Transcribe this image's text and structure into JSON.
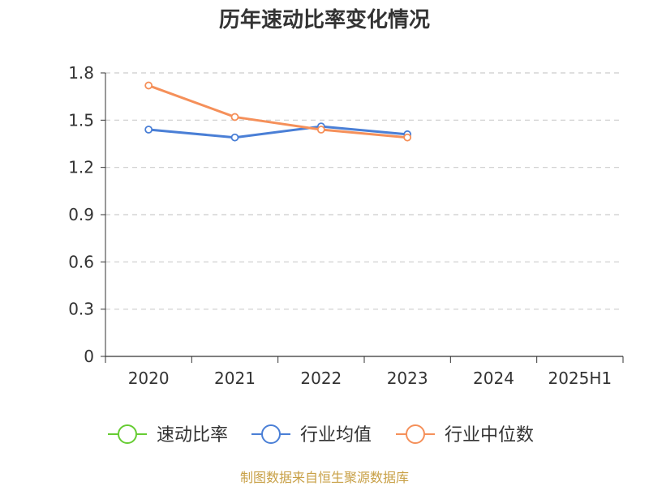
{
  "chart_data": {
    "type": "line",
    "title": "历年速动比率变化情况",
    "categories": [
      "2020",
      "2021",
      "2022",
      "2023",
      "2024",
      "2025H1"
    ],
    "y_ticks": [
      "0",
      "0.3",
      "0.6",
      "0.9",
      "1.2",
      "1.5",
      "1.8"
    ],
    "ylim": [
      0,
      1.8
    ],
    "grid": true,
    "legend_position": "bottom",
    "series": [
      {
        "name": "速动比率",
        "color": "#66cc33",
        "values": [
          null,
          null,
          null,
          null,
          null,
          null
        ]
      },
      {
        "name": "行业均值",
        "color": "#4a7fd6",
        "values": [
          1.44,
          1.39,
          1.46,
          1.41,
          null,
          null
        ]
      },
      {
        "name": "行业中位数",
        "color": "#f5905a",
        "values": [
          1.72,
          1.52,
          1.44,
          1.39,
          null,
          null
        ]
      }
    ]
  },
  "source_note": "制图数据来自恒生聚源数据库"
}
